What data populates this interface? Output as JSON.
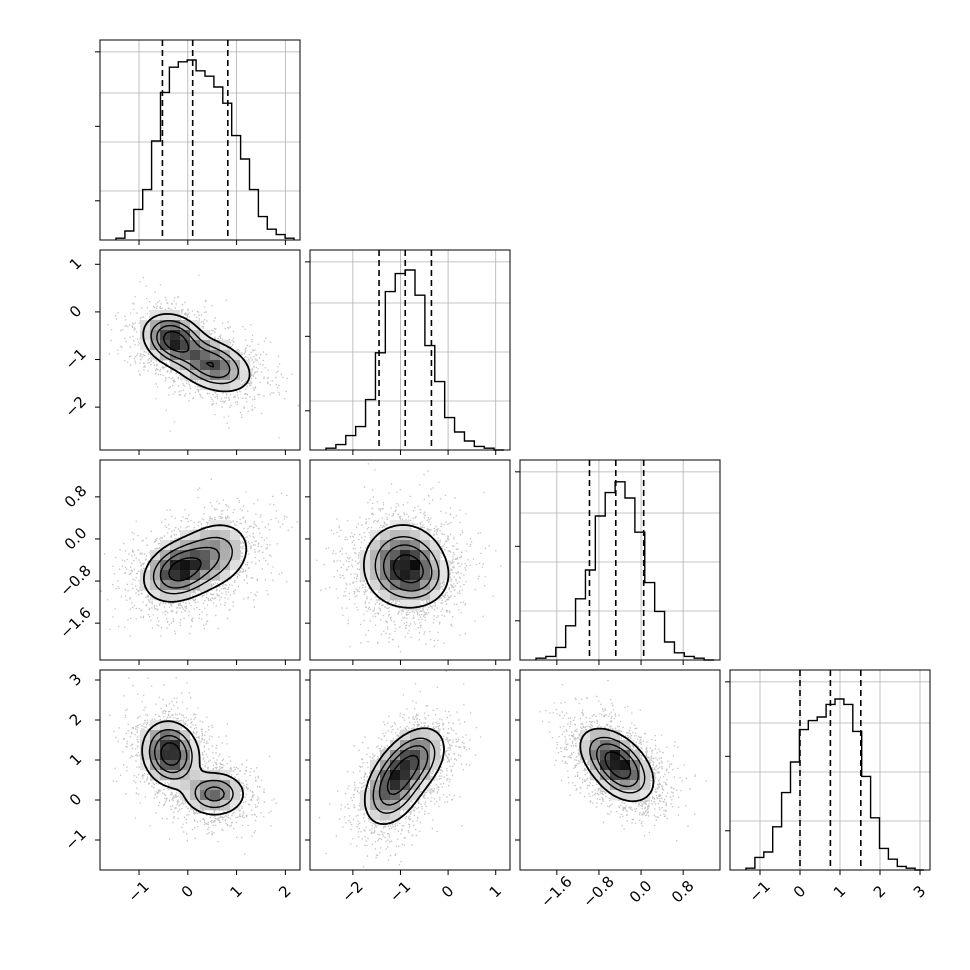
{
  "chart_data": {
    "type": "corner",
    "description_of_panels": "lower-triangle corner plot of 4 parameters; diagonal = 1D histograms with dashed quantile lines; off-diagonal = 2D density (scatter + shaded histogram + contours)",
    "params": [
      {
        "index": 0,
        "range": [
          -1.8,
          2.3
        ],
        "ticks": [
          -1,
          0,
          1,
          2
        ],
        "tick_labels": [
          "−1",
          "0",
          "1",
          "2"
        ],
        "quantiles": [
          -0.52,
          0.1,
          0.82
        ]
      },
      {
        "index": 1,
        "range": [
          -2.9,
          1.3
        ],
        "ticks": [
          -2,
          -1,
          0,
          1
        ],
        "tick_labels": [
          "−2",
          "−1",
          "0",
          "1"
        ],
        "quantiles": [
          -1.45,
          -0.9,
          -0.35
        ]
      },
      {
        "index": 2,
        "range": [
          -2.3,
          1.5
        ],
        "ticks": [
          -1.6,
          -0.8,
          0.0,
          0.8
        ],
        "tick_labels": [
          "−1.6",
          "−0.8",
          "0.0",
          "0.8"
        ],
        "quantiles": [
          -0.98,
          -0.48,
          0.05
        ]
      },
      {
        "index": 3,
        "range": [
          -1.75,
          3.25
        ],
        "ticks": [
          -1,
          0,
          1,
          2,
          3
        ],
        "tick_labels": [
          "−1",
          "0",
          "1",
          "2",
          "3"
        ],
        "quantiles": [
          0.0,
          0.76,
          1.52
        ]
      }
    ],
    "histograms": [
      [
        0.01,
        0.05,
        0.17,
        0.28,
        0.55,
        0.82,
        0.96,
        0.99,
        1.0,
        0.94,
        0.91,
        0.85,
        0.76,
        0.58,
        0.45,
        0.28,
        0.13,
        0.06,
        0.03,
        0.01
      ],
      [
        0.01,
        0.03,
        0.08,
        0.13,
        0.28,
        0.54,
        0.88,
        0.98,
        1.0,
        0.86,
        0.58,
        0.38,
        0.18,
        0.1,
        0.05,
        0.02,
        0.01,
        0.0
      ],
      [
        0.01,
        0.02,
        0.07,
        0.19,
        0.34,
        0.5,
        0.8,
        0.93,
        0.99,
        0.9,
        0.71,
        0.43,
        0.27,
        0.1,
        0.04,
        0.02,
        0.01,
        0.0
      ],
      [
        0.01,
        0.07,
        0.1,
        0.24,
        0.43,
        0.6,
        0.78,
        0.83,
        0.85,
        0.92,
        0.95,
        0.92,
        0.77,
        0.52,
        0.29,
        0.12,
        0.06,
        0.02,
        0.01,
        0.0
      ]
    ],
    "pairs": [
      {
        "x": 0,
        "y": 1,
        "components": [
          {
            "mean": [
              -0.3,
              -0.58
            ],
            "sd": [
              0.32,
              0.28
            ],
            "rho": -0.2,
            "w": 1.0
          },
          {
            "mean": [
              0.5,
              -1.12
            ],
            "sd": [
              0.42,
              0.3
            ],
            "rho": -0.35,
            "w": 0.85
          }
        ]
      },
      {
        "x": 0,
        "y": 2,
        "components": [
          {
            "mean": [
              -0.18,
              -0.62
            ],
            "sd": [
              0.38,
              0.3
            ],
            "rho": 0.25,
            "w": 1.0
          },
          {
            "mean": [
              0.55,
              -0.3
            ],
            "sd": [
              0.42,
              0.36
            ],
            "rho": 0.2,
            "w": 0.55
          }
        ]
      },
      {
        "x": 1,
        "y": 2,
        "components": [
          {
            "mean": [
              -0.95,
              -0.5
            ],
            "sd": [
              0.45,
              0.42
            ],
            "rho": 0.0,
            "w": 1.0
          },
          {
            "mean": [
              -0.6,
              -0.7
            ],
            "sd": [
              0.35,
              0.3
            ],
            "rho": -0.1,
            "w": 0.45
          }
        ]
      },
      {
        "x": 0,
        "y": 3,
        "components": [
          {
            "mean": [
              -0.35,
              1.15
            ],
            "sd": [
              0.3,
              0.42
            ],
            "rho": -0.1,
            "w": 1.0
          },
          {
            "mean": [
              0.55,
              0.15
            ],
            "sd": [
              0.34,
              0.3
            ],
            "rho": 0.0,
            "w": 0.65
          }
        ]
      },
      {
        "x": 1,
        "y": 3,
        "components": [
          {
            "mean": [
              -1.15,
              0.3
            ],
            "sd": [
              0.33,
              0.5
            ],
            "rho": 0.35,
            "w": 1.0
          },
          {
            "mean": [
              -0.7,
              1.0
            ],
            "sd": [
              0.35,
              0.45
            ],
            "rho": 0.35,
            "w": 0.9
          }
        ]
      },
      {
        "x": 2,
        "y": 3,
        "components": [
          {
            "mean": [
              -0.5,
              1.0
            ],
            "sd": [
              0.35,
              0.42
            ],
            "rho": -0.45,
            "w": 1.0
          },
          {
            "mean": [
              -0.3,
              0.5
            ],
            "sd": [
              0.3,
              0.35
            ],
            "rho": -0.3,
            "w": 0.4
          }
        ]
      }
    ],
    "contour_levels": [
      0.15,
      0.35,
      0.55,
      0.8
    ],
    "grid": true,
    "colors": {
      "line": "#000000",
      "grid": "#b0b0b0",
      "density": "#000000"
    }
  }
}
